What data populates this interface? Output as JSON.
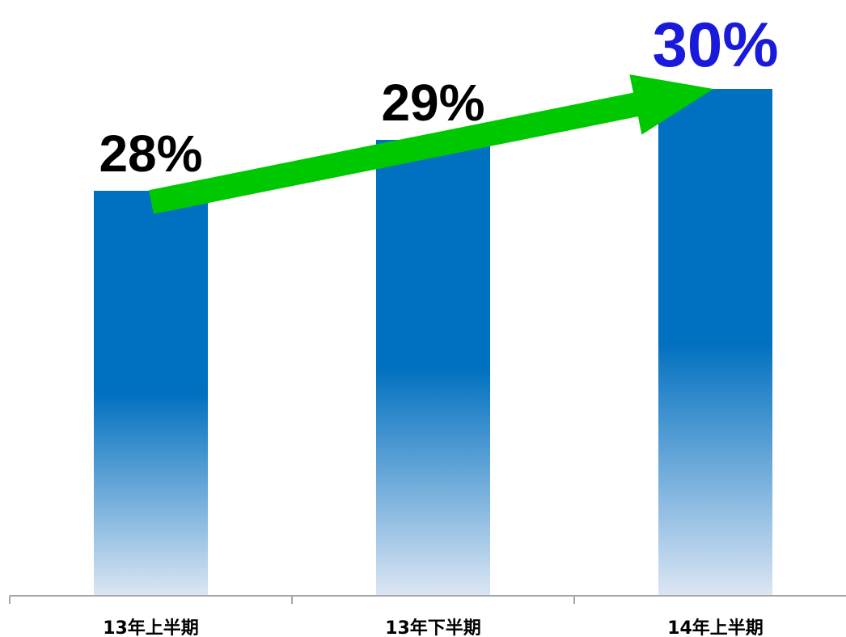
{
  "chart_data": {
    "type": "bar",
    "categories": [
      "13年上半期",
      "13年下半期",
      "14年上半期"
    ],
    "values": [
      28,
      29,
      30
    ],
    "data_labels": [
      "28%",
      "29%",
      "30%"
    ],
    "title": "",
    "xlabel": "",
    "ylabel": "",
    "grid": false,
    "legend": "none",
    "colors": {
      "bar": "#0070c0",
      "bar_fade": "#dce6f4",
      "label": "#000000",
      "highlight_label": "#1a1adb",
      "arrow": "#00c800",
      "axis": "#a6a6a6"
    },
    "highlight_index": 2,
    "trend_arrow": true
  }
}
